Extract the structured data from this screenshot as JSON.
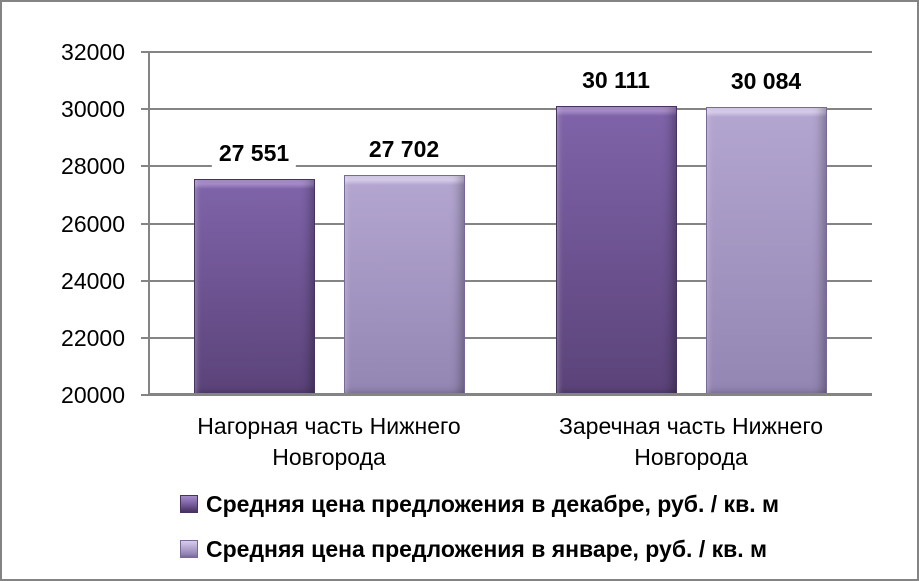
{
  "chart_data": {
    "type": "bar",
    "title": "",
    "xlabel": "",
    "ylabel": "",
    "categories": [
      "Нагорная часть Нижнего Новгорода",
      "Заречная часть Нижнего Новгорода"
    ],
    "series": [
      {
        "name": "Средняя цена предложения в декабре, руб. / кв. м",
        "values": [
          27551,
          30111
        ],
        "data_labels": [
          "27 551",
          "30 111"
        ],
        "fill_top": "#7E63A8",
        "fill_bottom": "#5B4379",
        "bevel": "#A68CC9",
        "edge": "#46335F"
      },
      {
        "name": "Средняя цена предложения в январе, руб. / кв. м",
        "values": [
          27702,
          30084
        ],
        "data_labels": [
          "27 702",
          "30 084"
        ],
        "fill_top": "#B2A5CF",
        "fill_bottom": "#9486B3",
        "bevel": "#D7CDEA",
        "edge": "#79699B"
      }
    ],
    "y_axis": {
      "min": 20000,
      "max": 32000,
      "step": 2000
    },
    "y_tick_labels": [
      "20000",
      "22000",
      "24000",
      "26000",
      "28000",
      "30000",
      "32000"
    ],
    "grid": true,
    "legend_position": "bottom",
    "axis_color": "#848484",
    "background": "#FFFFFF",
    "border_color": "#848484"
  }
}
